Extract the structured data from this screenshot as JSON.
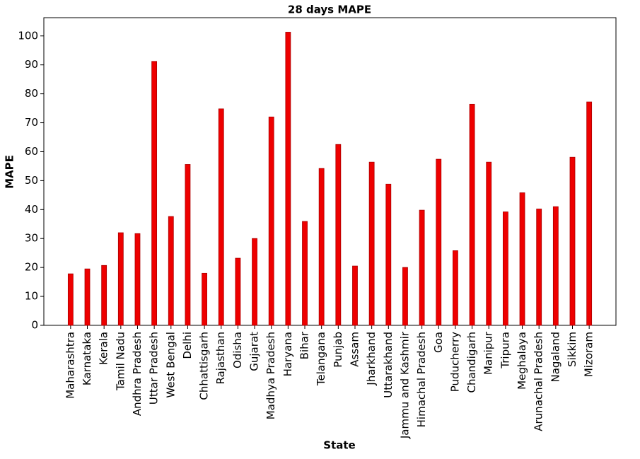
{
  "chart_data": {
    "type": "bar",
    "title": "28 days MAPE",
    "x_label": "State",
    "y_label": "MAPE",
    "categories": [
      "Maharashtra",
      "Karnataka",
      "Kerala",
      "Tamil Nadu",
      "Andhra Pradesh",
      "Uttar Pradesh",
      "West Bengal",
      "Delhi",
      "Chhattisgarh",
      "Rajasthan",
      "Odisha",
      "Gujarat",
      "Madhya Pradesh",
      "Haryana",
      "Bihar",
      "Telangana",
      "Punjab",
      "Assam",
      "Jharkhand",
      "Uttarakhand",
      "Jammu and Kashmir",
      "Himachal Pradesh",
      "Goa",
      "Puducherry",
      "Chandigarh",
      "Manipur",
      "Tripura",
      "Meghalaya",
      "Arunachal Pradesh",
      "Nagaland",
      "Sikkim",
      "Mizoram"
    ],
    "values": [
      17.8,
      19.5,
      20.7,
      32,
      31.7,
      91.2,
      37.6,
      55.6,
      18,
      74.8,
      23.2,
      30,
      72,
      101.3,
      35.9,
      54.2,
      62.5,
      20.5,
      56.4,
      48.8,
      20,
      39.8,
      57.4,
      25.8,
      76.4,
      56.4,
      39.2,
      45.8,
      40.2,
      41,
      58.1,
      77.2
    ],
    "color": "#ee0000",
    "ylim": [
      0,
      106.3
    ],
    "yticks": [
      0,
      10,
      20,
      30,
      40,
      50,
      60,
      70,
      80,
      90,
      100
    ],
    "grid": false
  }
}
